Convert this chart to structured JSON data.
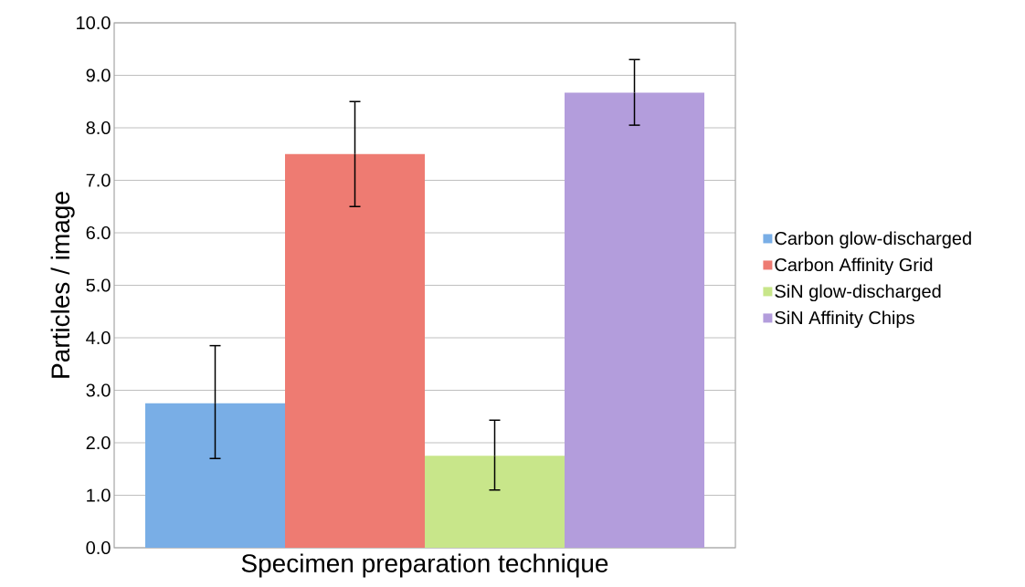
{
  "chart_data": {
    "type": "bar",
    "xlabel": "Specimen preparation technique",
    "ylabel": "Particles / image",
    "categories": [
      null
    ],
    "series": [
      {
        "name": "Carbon glow-discharged",
        "color": "#79aee6",
        "values": [
          2.75
        ],
        "errors": [
          [
            1.7,
            3.85
          ]
        ]
      },
      {
        "name": "Carbon Affinity Grid",
        "color": "#ee7b72",
        "values": [
          7.5
        ],
        "errors": [
          [
            6.5,
            8.5
          ]
        ]
      },
      {
        "name": "SiN glow-discharged",
        "color": "#c8e68a",
        "values": [
          1.75
        ],
        "errors": [
          [
            1.1,
            2.43
          ]
        ]
      },
      {
        "name": "SiN Affinity Chips",
        "color": "#b39ddc",
        "values": [
          8.67
        ],
        "errors": [
          [
            8.05,
            9.3
          ]
        ]
      }
    ],
    "ylim": [
      0,
      10
    ],
    "yticks": [
      {
        "value": 0,
        "label": "0.0"
      },
      {
        "value": 1,
        "label": "1.0"
      },
      {
        "value": 2,
        "label": "2.0"
      },
      {
        "value": 3,
        "label": "3.0"
      },
      {
        "value": 4,
        "label": "4.0"
      },
      {
        "value": 5,
        "label": "5.0"
      },
      {
        "value": 6,
        "label": "6.0"
      },
      {
        "value": 7,
        "label": "7.0"
      },
      {
        "value": 8,
        "label": "8.0"
      },
      {
        "value": 9,
        "label": "9.0"
      },
      {
        "value": 10,
        "label": "10.0"
      }
    ],
    "grid": "y",
    "legend": "right"
  }
}
